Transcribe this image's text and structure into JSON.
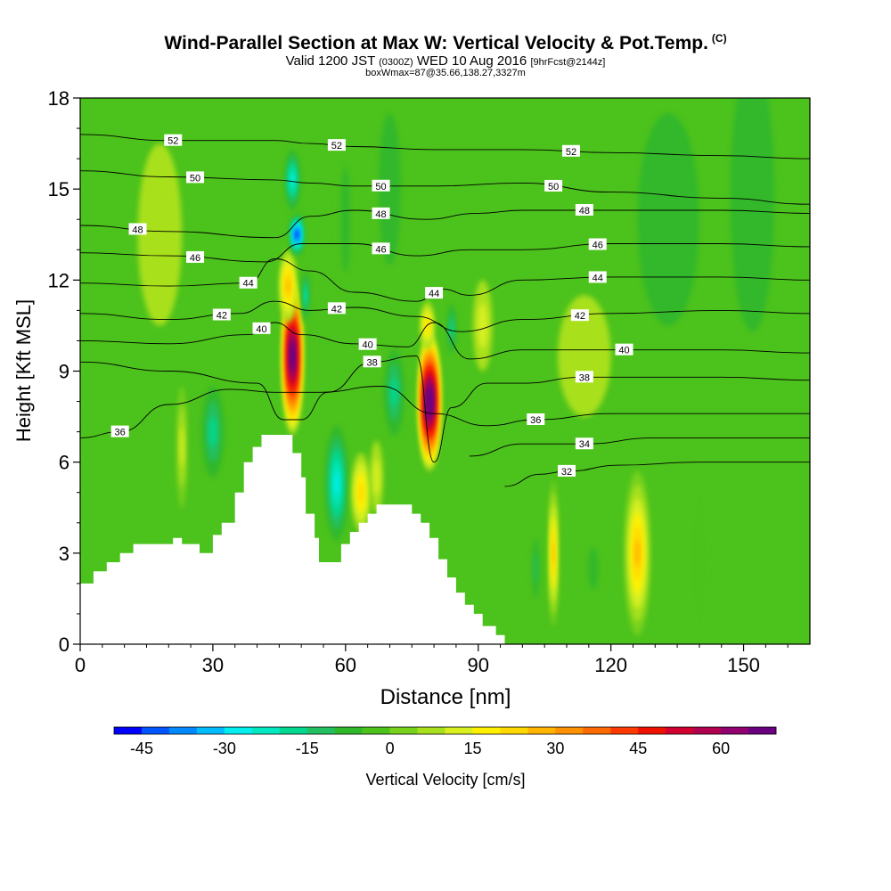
{
  "header": {
    "title": "Wind-Parallel Section at Max W: Vertical Velocity & Pot.Temp.",
    "copyright": "(C)",
    "valid_prefix": "Valid 1200 JST",
    "valid_utc": "(0300Z)",
    "valid_date": "WED 10 Aug 2016",
    "forecast": "[9hrFcst@2144z]",
    "box_info": "boxWmax=87@35.66,138.27,3327m"
  },
  "chart_data": {
    "type": "heatmap",
    "title": "Wind-Parallel Section at Max W: Vertical Velocity & Pot.Temp.",
    "xlabel": "Distance [nm]",
    "ylabel": "Height [Kft MSL]",
    "xlim": [
      0,
      165
    ],
    "ylim": [
      0,
      18
    ],
    "x_ticks": [
      "0",
      "30",
      "60",
      "90",
      "120",
      "150"
    ],
    "x_tick_values": [
      0,
      30,
      60,
      90,
      120,
      150
    ],
    "y_ticks": [
      "0",
      "3",
      "6",
      "9",
      "12",
      "15",
      "18"
    ],
    "y_tick_values": [
      0,
      3,
      6,
      9,
      12,
      15,
      18
    ],
    "colorbar": {
      "label": "Vertical Velocity [cm/s]",
      "tick_labels": [
        "-45",
        "-30",
        "-15",
        "0",
        "15",
        "30",
        "45",
        "60"
      ],
      "tick_values": [
        -45,
        -30,
        -15,
        0,
        15,
        30,
        45,
        60
      ],
      "range": [
        -50,
        70
      ],
      "step": 5,
      "colors": [
        "#0000ff",
        "#0055ff",
        "#0088ff",
        "#00bbff",
        "#00eeee",
        "#00e8c0",
        "#00d890",
        "#22c060",
        "#30b82a",
        "#4cc21c",
        "#78d21c",
        "#a8e01e",
        "#d8f020",
        "#fff000",
        "#ffd800",
        "#ffb400",
        "#ff9000",
        "#ff6a00",
        "#ff3a00",
        "#f01000",
        "#d00030",
        "#b00050",
        "#900070",
        "#6a0080"
      ]
    },
    "terrain": [
      [
        0,
        2.0
      ],
      [
        3,
        2.0
      ],
      [
        3,
        2.4
      ],
      [
        6,
        2.4
      ],
      [
        6,
        2.7
      ],
      [
        9,
        2.7
      ],
      [
        9,
        3.0
      ],
      [
        12,
        3.0
      ],
      [
        12,
        3.3
      ],
      [
        21,
        3.3
      ],
      [
        21,
        3.5
      ],
      [
        23,
        3.5
      ],
      [
        23,
        3.3
      ],
      [
        27,
        3.3
      ],
      [
        27,
        3.0
      ],
      [
        30,
        3.0
      ],
      [
        30,
        3.6
      ],
      [
        32,
        3.6
      ],
      [
        32,
        4.0
      ],
      [
        35,
        4.0
      ],
      [
        35,
        5.0
      ],
      [
        37,
        5.0
      ],
      [
        37,
        6.0
      ],
      [
        39,
        6.0
      ],
      [
        39,
        6.5
      ],
      [
        41,
        6.5
      ],
      [
        41,
        6.9
      ],
      [
        48,
        6.9
      ],
      [
        48,
        6.3
      ],
      [
        50,
        6.3
      ],
      [
        50,
        5.5
      ],
      [
        51,
        5.5
      ],
      [
        51,
        4.3
      ],
      [
        53,
        4.3
      ],
      [
        53,
        3.5
      ],
      [
        54,
        3.5
      ],
      [
        54,
        2.7
      ],
      [
        59,
        2.7
      ],
      [
        59,
        3.3
      ],
      [
        61,
        3.3
      ],
      [
        61,
        3.7
      ],
      [
        63,
        3.7
      ],
      [
        63,
        4.0
      ],
      [
        65,
        4.0
      ],
      [
        65,
        4.3
      ],
      [
        67,
        4.3
      ],
      [
        67,
        4.6
      ],
      [
        75,
        4.6
      ],
      [
        75,
        4.3
      ],
      [
        77,
        4.3
      ],
      [
        77,
        4.0
      ],
      [
        79,
        4.0
      ],
      [
        79,
        3.5
      ],
      [
        81,
        3.5
      ],
      [
        81,
        2.8
      ],
      [
        83,
        2.8
      ],
      [
        83,
        2.2
      ],
      [
        85,
        2.2
      ],
      [
        85,
        1.7
      ],
      [
        87,
        1.7
      ],
      [
        87,
        1.3
      ],
      [
        89,
        1.3
      ],
      [
        89,
        1.0
      ],
      [
        91,
        1.0
      ],
      [
        91,
        0.6
      ],
      [
        94,
        0.6
      ],
      [
        94,
        0.3
      ],
      [
        96,
        0.3
      ],
      [
        96,
        0.0
      ]
    ],
    "w_features": [
      {
        "x": 48,
        "y": 9.5,
        "rx": 2.4,
        "ry": 2.6,
        "w": 75
      },
      {
        "x": 47,
        "y": 11.8,
        "rx": 2.0,
        "ry": 1.2,
        "w": 25
      },
      {
        "x": 79,
        "y": 8.0,
        "rx": 2.6,
        "ry": 2.3,
        "w": 80
      },
      {
        "x": 78.5,
        "y": 10.5,
        "rx": 1.6,
        "ry": 0.8,
        "w": 22
      },
      {
        "x": 49,
        "y": 13.5,
        "rx": 1.6,
        "ry": 0.7,
        "w": -47
      },
      {
        "x": 48,
        "y": 15.3,
        "rx": 2.0,
        "ry": 1.2,
        "w": -28
      },
      {
        "x": 51,
        "y": 11.5,
        "rx": 1.0,
        "ry": 1.0,
        "w": -25
      },
      {
        "x": 84,
        "y": 10.4,
        "rx": 1.4,
        "ry": 1.1,
        "w": -20
      },
      {
        "x": 58,
        "y": 5.3,
        "rx": 2.6,
        "ry": 1.9,
        "w": -27
      },
      {
        "x": 71,
        "y": 8.3,
        "rx": 3.0,
        "ry": 1.9,
        "w": -18
      },
      {
        "x": 30,
        "y": 7.0,
        "rx": 2.5,
        "ry": 1.5,
        "w": -16
      },
      {
        "x": 63.5,
        "y": 5.0,
        "rx": 2.2,
        "ry": 1.3,
        "w": 22
      },
      {
        "x": 67,
        "y": 5.5,
        "rx": 1.5,
        "ry": 1.2,
        "w": 12
      },
      {
        "x": 23,
        "y": 6.5,
        "rx": 1.2,
        "ry": 2.0,
        "w": 13
      },
      {
        "x": 107,
        "y": 3.0,
        "rx": 1.1,
        "ry": 2.4,
        "w": 28
      },
      {
        "x": 103,
        "y": 2.5,
        "rx": 1.2,
        "ry": 1.5,
        "w": -14
      },
      {
        "x": 116,
        "y": 2.5,
        "rx": 2.2,
        "ry": 1.4,
        "w": -10
      },
      {
        "x": 126,
        "y": 3.0,
        "rx": 3.0,
        "ry": 2.7,
        "w": 28
      },
      {
        "x": 91,
        "y": 10.5,
        "rx": 2.2,
        "ry": 1.5,
        "w": 12
      },
      {
        "x": 133,
        "y": 14.0,
        "rx": 7.0,
        "ry": 3.5,
        "w": -6
      },
      {
        "x": 152,
        "y": 14.8,
        "rx": 5.0,
        "ry": 4.5,
        "w": -6
      },
      {
        "x": 140,
        "y": 2.8,
        "rx": 3.0,
        "ry": 2.5,
        "w": -5
      },
      {
        "x": 18,
        "y": 13.5,
        "rx": 5.0,
        "ry": 3.0,
        "w": 6
      },
      {
        "x": 114,
        "y": 9.5,
        "rx": 6.0,
        "ry": 2.0,
        "w": 6
      },
      {
        "x": 60,
        "y": 14.0,
        "rx": 2.0,
        "ry": 3.5,
        "w": -8
      },
      {
        "x": 70,
        "y": 15.0,
        "rx": 2.5,
        "ry": 2.5,
        "w": -7
      }
    ],
    "theta_contours": [
      {
        "theta": 52,
        "label_x": [
          21,
          58,
          111
        ],
        "pts": [
          [
            0,
            16.8
          ],
          [
            20,
            16.6
          ],
          [
            44,
            16.6
          ],
          [
            52,
            16.5
          ],
          [
            62,
            16.4
          ],
          [
            80,
            16.3
          ],
          [
            100,
            16.3
          ],
          [
            120,
            16.2
          ],
          [
            145,
            16.1
          ],
          [
            165,
            16.0
          ]
        ]
      },
      {
        "theta": 50,
        "label_x": [
          26,
          68,
          107
        ],
        "pts": [
          [
            0,
            15.6
          ],
          [
            20,
            15.4
          ],
          [
            44,
            15.3
          ],
          [
            52,
            15.2
          ],
          [
            62,
            15.1
          ],
          [
            80,
            15.1
          ],
          [
            100,
            15.2
          ],
          [
            120,
            14.9
          ],
          [
            145,
            14.7
          ],
          [
            165,
            14.5
          ]
        ]
      },
      {
        "theta": 48,
        "label_x": [
          13,
          68,
          114
        ],
        "pts": [
          [
            0,
            13.8
          ],
          [
            20,
            13.6
          ],
          [
            44,
            13.4
          ],
          [
            52,
            14.1
          ],
          [
            62,
            14.3
          ],
          [
            78,
            14.0
          ],
          [
            90,
            14.2
          ],
          [
            100,
            14.3
          ],
          [
            120,
            14.3
          ],
          [
            145,
            14.3
          ],
          [
            165,
            14.2
          ]
        ]
      },
      {
        "theta": 46,
        "label_x": [
          26,
          68,
          117
        ],
        "pts": [
          [
            0,
            12.9
          ],
          [
            20,
            12.8
          ],
          [
            42,
            12.6
          ],
          [
            50,
            13.2
          ],
          [
            62,
            13.2
          ],
          [
            76,
            12.8
          ],
          [
            88,
            13.0
          ],
          [
            100,
            13.0
          ],
          [
            120,
            13.2
          ],
          [
            145,
            13.2
          ],
          [
            165,
            13.1
          ]
        ]
      },
      {
        "theta": 44,
        "label_x": [
          38,
          80,
          117
        ],
        "pts": [
          [
            0,
            11.9
          ],
          [
            20,
            11.8
          ],
          [
            38,
            11.9
          ],
          [
            44,
            12.7
          ],
          [
            52,
            12.3
          ],
          [
            62,
            11.6
          ],
          [
            76,
            11.3
          ],
          [
            82,
            11.7
          ],
          [
            88,
            11.5
          ],
          [
            100,
            12.0
          ],
          [
            120,
            12.1
          ],
          [
            145,
            12.1
          ],
          [
            165,
            12.0
          ]
        ]
      },
      {
        "theta": 42,
        "label_x": [
          32,
          58,
          113
        ],
        "pts": [
          [
            0,
            10.9
          ],
          [
            20,
            10.7
          ],
          [
            36,
            10.9
          ],
          [
            44,
            11.3
          ],
          [
            52,
            11.0
          ],
          [
            62,
            11.1
          ],
          [
            76,
            10.8
          ],
          [
            86,
            10.3
          ],
          [
            100,
            10.7
          ],
          [
            120,
            10.9
          ],
          [
            145,
            11.0
          ],
          [
            165,
            10.9
          ]
        ]
      },
      {
        "theta": 40,
        "label_x": [
          41,
          65,
          123
        ],
        "pts": [
          [
            0,
            10.0
          ],
          [
            20,
            9.9
          ],
          [
            38,
            10.2
          ],
          [
            44,
            10.6
          ],
          [
            50,
            10.2
          ],
          [
            62,
            9.9
          ],
          [
            74,
            9.8
          ],
          [
            80,
            10.6
          ],
          [
            88,
            9.4
          ],
          [
            100,
            9.7
          ],
          [
            123,
            9.7
          ],
          [
            145,
            9.7
          ],
          [
            165,
            9.6
          ]
        ]
      },
      {
        "theta": 38,
        "label_x": [
          66,
          114
        ],
        "pts": [
          [
            0,
            9.3
          ],
          [
            20,
            9.0
          ],
          [
            40,
            8.6
          ],
          [
            46,
            7.4
          ],
          [
            50,
            7.4
          ],
          [
            56,
            8.3
          ],
          [
            66,
            9.3
          ],
          [
            76,
            9.5
          ],
          [
            80,
            6.0
          ],
          [
            84,
            7.8
          ],
          [
            92,
            8.6
          ],
          [
            100,
            8.6
          ],
          [
            114,
            8.8
          ],
          [
            145,
            8.8
          ],
          [
            165,
            8.7
          ]
        ]
      },
      {
        "theta": 36,
        "label_x": [
          9,
          103
        ],
        "pts": [
          [
            0,
            6.8
          ],
          [
            9,
            7.0
          ],
          [
            20,
            7.9
          ],
          [
            34,
            8.4
          ],
          [
            44,
            8.3
          ],
          [
            54,
            8.3
          ],
          [
            68,
            8.5
          ],
          [
            80,
            7.6
          ],
          [
            92,
            7.2
          ],
          [
            103,
            7.4
          ],
          [
            120,
            7.6
          ],
          [
            145,
            7.6
          ],
          [
            165,
            7.6
          ]
        ]
      },
      {
        "theta": 34,
        "label_x": [
          114
        ],
        "pts": [
          [
            88,
            6.2
          ],
          [
            100,
            6.6
          ],
          [
            114,
            6.6
          ],
          [
            130,
            6.8
          ],
          [
            150,
            6.8
          ],
          [
            165,
            6.8
          ]
        ]
      },
      {
        "theta": 32,
        "label_x": [
          110
        ],
        "pts": [
          [
            96,
            5.2
          ],
          [
            104,
            5.6
          ],
          [
            110,
            5.7
          ],
          [
            122,
            5.9
          ],
          [
            140,
            6.0
          ],
          [
            165,
            6.0
          ]
        ]
      }
    ]
  }
}
